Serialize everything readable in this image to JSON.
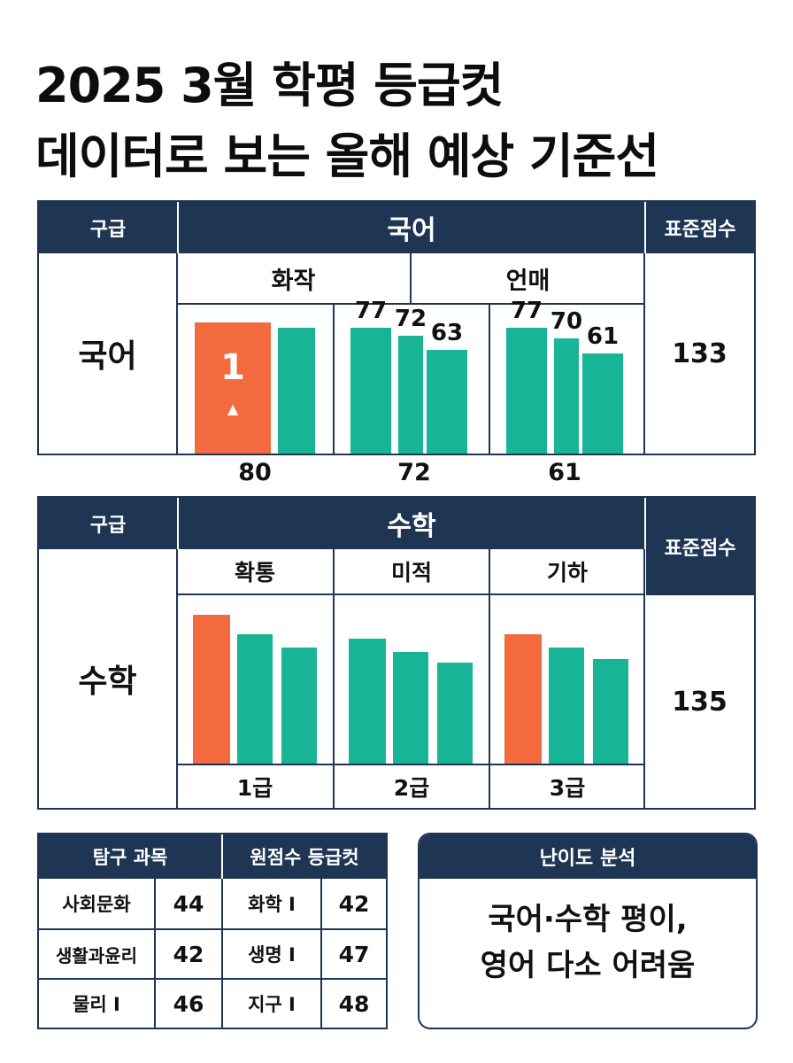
{
  "title_line1": "2025 3월 학평 등급컷",
  "title_line2": "데이터로 보는 올해 예상 기준선",
  "korean": {
    "grade_header": "구급",
    "subject_header": "국어",
    "score_header": "표준점수",
    "row_label": "국어",
    "sub_subjects": [
      "화작",
      "언매"
    ],
    "standard_score": "133",
    "grade_label_on_bar": "1",
    "marker_symbol": "▲",
    "bottom_values": [
      "80",
      "72",
      "61"
    ]
  },
  "math": {
    "grade_header": "구급",
    "subject_header": "수학",
    "score_header": "표준점수",
    "row_label": "수학",
    "sub_subjects": [
      "확통",
      "미적",
      "기하"
    ],
    "standard_score": "135",
    "grade_labels": [
      "1급",
      "2급",
      "3급"
    ]
  },
  "inquiry_table": {
    "headers": [
      "탐구 과목",
      "원점수 등급컷"
    ],
    "rows": [
      {
        "subject1": "사회문화",
        "score1": "44",
        "subject2": "화학 I",
        "score2": "42"
      },
      {
        "subject1": "생활과윤리",
        "score1": "42",
        "subject2": "생명 I",
        "score2": "47"
      },
      {
        "subject1": "물리 I",
        "score1": "46",
        "subject2": "지구 I",
        "score2": "48"
      }
    ]
  },
  "difficulty": {
    "header": "난이도 분석",
    "line1": "국어·수학 평이,",
    "line2": "영어 다소 어려움"
  },
  "colors": {
    "navy": "#1f3554",
    "orange": "#f26a3d",
    "teal": "#17b596"
  },
  "chart_data": [
    {
      "type": "bar",
      "title": "국어",
      "groups": [
        {
          "name": "화작",
          "bars": [
            {
              "value": 80,
              "color": "orange",
              "label": "1"
            },
            {
              "value": 77,
              "color": "teal"
            }
          ]
        },
        {
          "name": "",
          "bars": [
            {
              "value": 77,
              "color": "teal",
              "label": "77"
            },
            {
              "value": 72,
              "color": "teal",
              "label": "72"
            },
            {
              "value": 63,
              "color": "teal",
              "label": "63"
            }
          ]
        },
        {
          "name": "언매",
          "bars": [
            {
              "value": 77,
              "color": "teal",
              "label": "77"
            },
            {
              "value": 70,
              "color": "teal",
              "label": "70"
            },
            {
              "value": 61,
              "color": "teal",
              "label": "61"
            }
          ]
        }
      ]
    },
    {
      "type": "bar",
      "title": "수학",
      "groups": [
        {
          "name": "확통",
          "bars": [
            {
              "value": 100,
              "color": "orange"
            },
            {
              "value": 87,
              "color": "teal"
            },
            {
              "value": 78,
              "color": "teal"
            }
          ]
        },
        {
          "name": "미적",
          "bars": [
            {
              "value": 84,
              "color": "teal"
            },
            {
              "value": 75,
              "color": "teal"
            },
            {
              "value": 68,
              "color": "teal"
            }
          ]
        },
        {
          "name": "기하",
          "bars": [
            {
              "value": 87,
              "color": "orange"
            },
            {
              "value": 78,
              "color": "teal"
            },
            {
              "value": 70,
              "color": "teal"
            }
          ]
        }
      ]
    }
  ]
}
